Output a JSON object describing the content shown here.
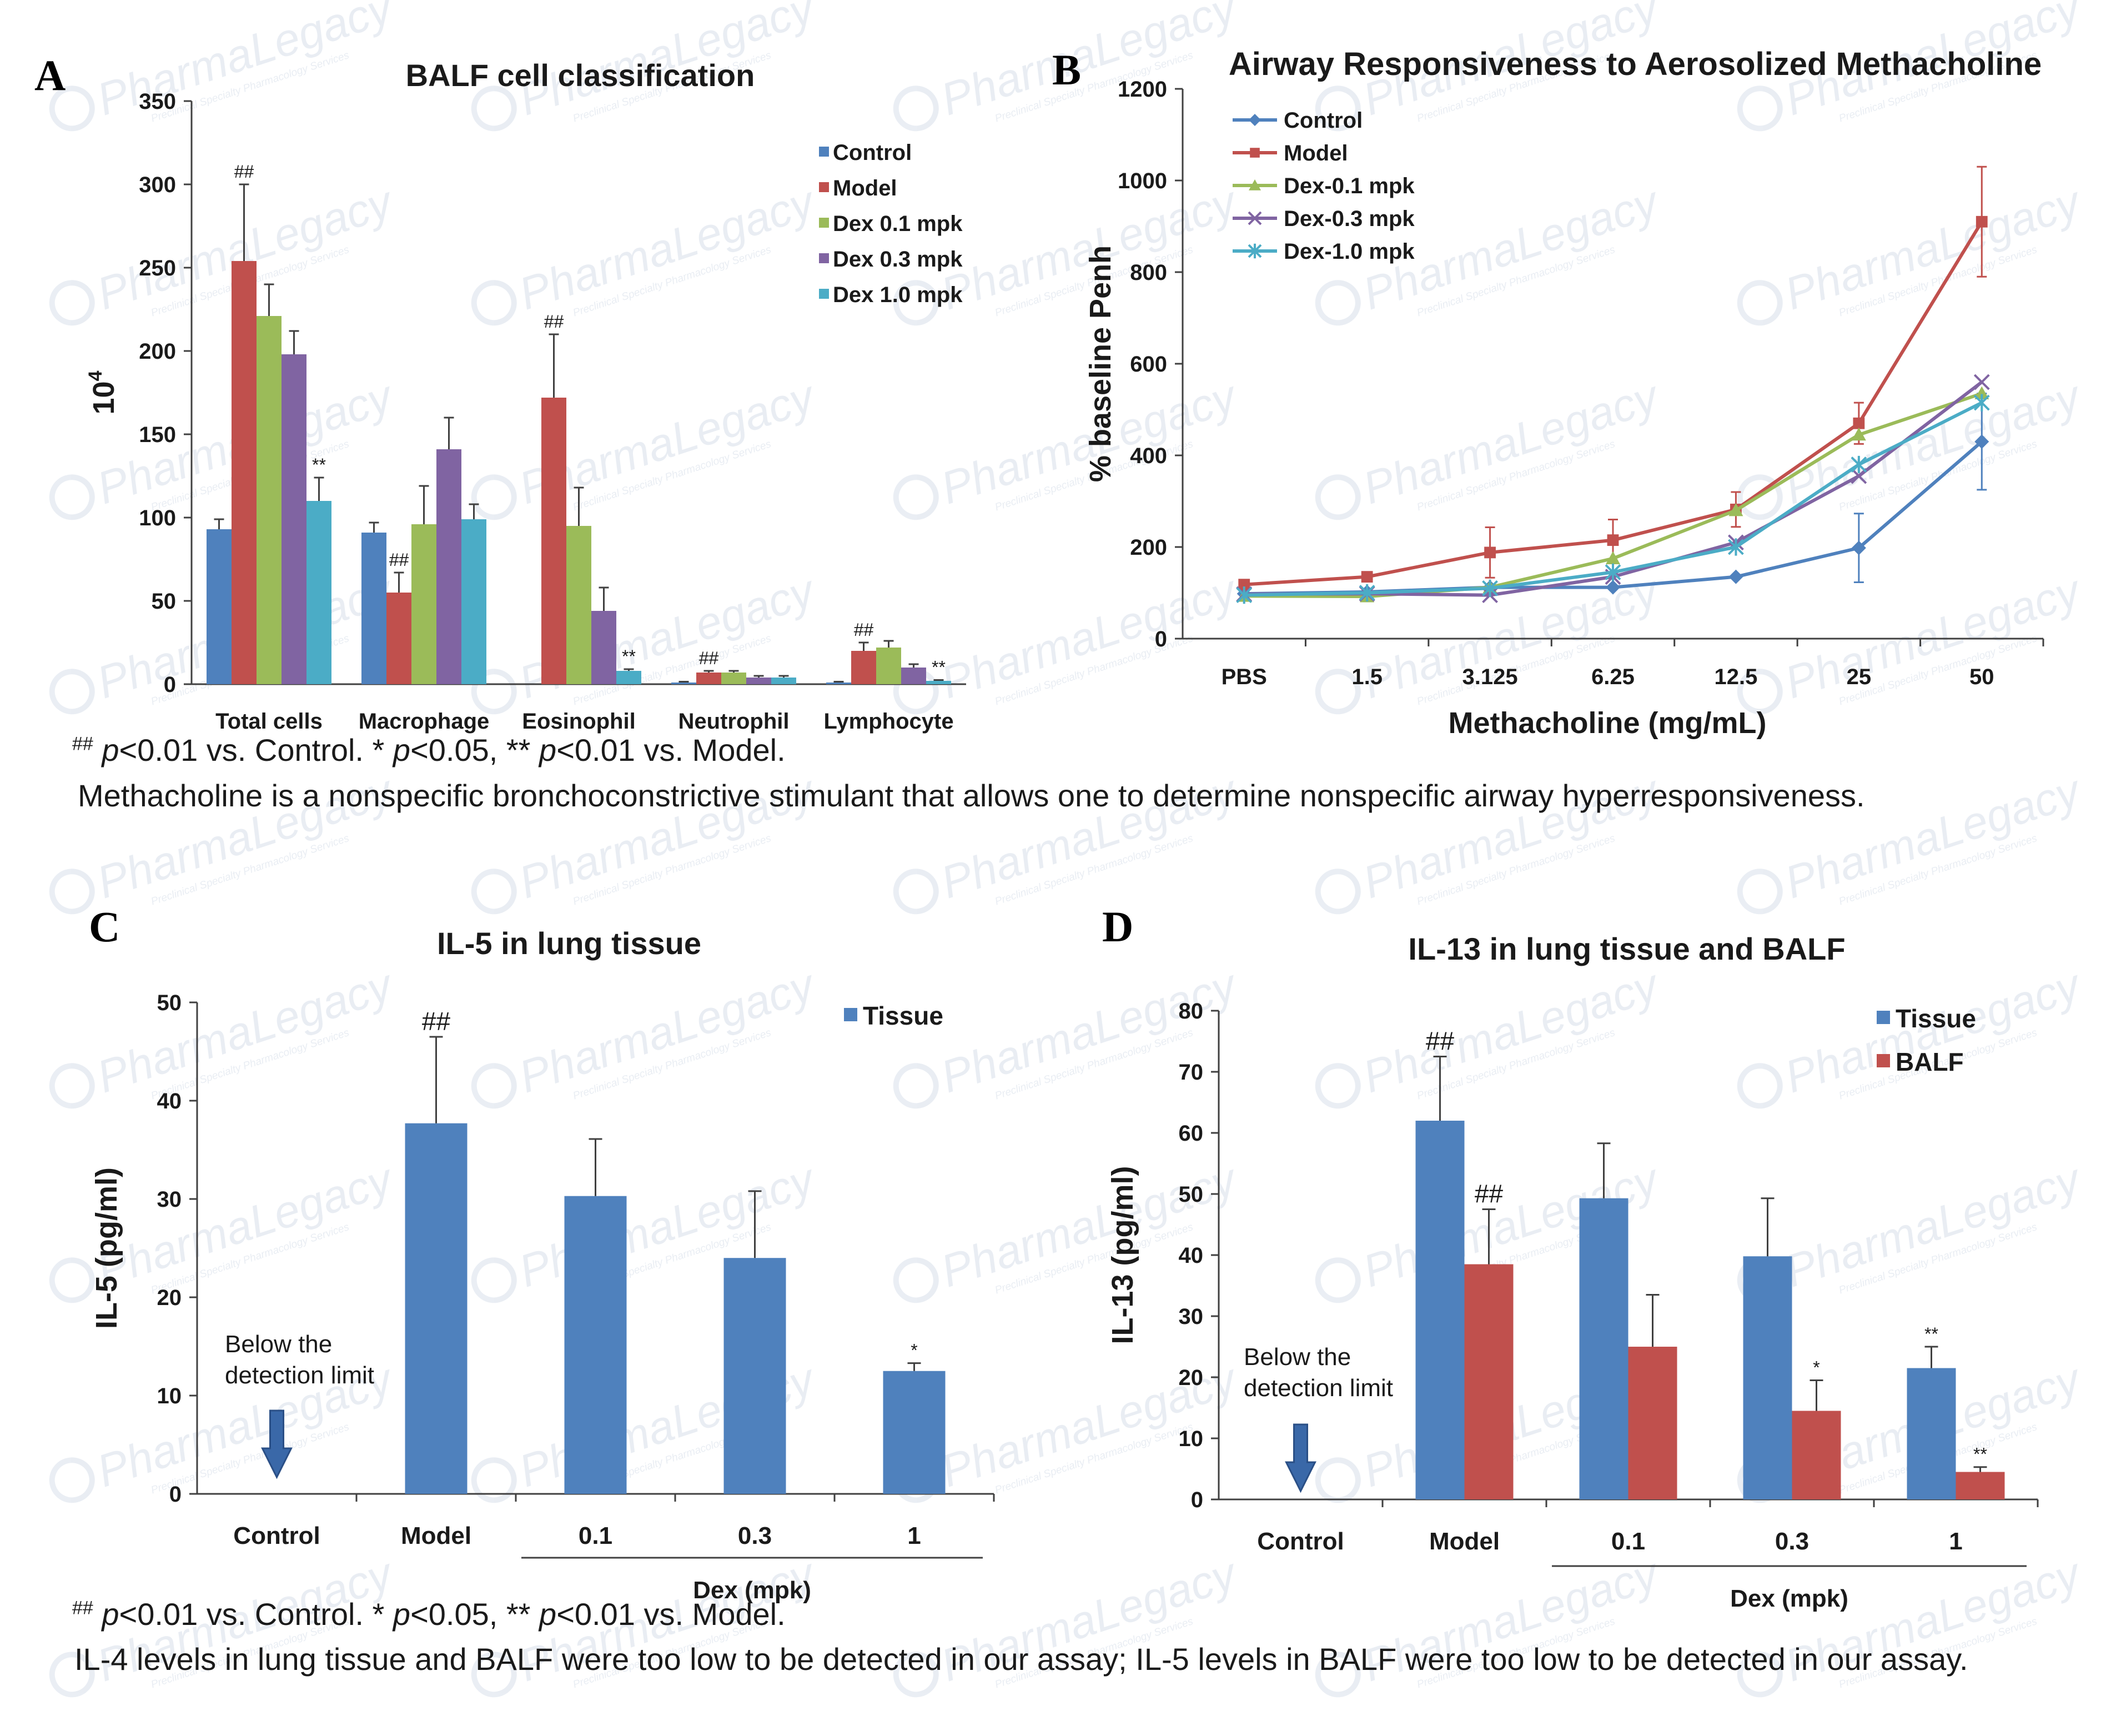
{
  "watermark": {
    "text": "PharmaLegacy",
    "tagline": "Preclinical Specialty Pharmacology Services"
  },
  "colors": {
    "blue": "#4f81bd",
    "red": "#c0504d",
    "green": "#9bbb59",
    "purple": "#8064a2",
    "cyan": "#4bacc6",
    "axis": "#404040",
    "text": "#1a1a1a"
  },
  "notes": {
    "hash": "##",
    "sig_a_1": " p",
    "sig_a_2": "<0.01 vs. Control. * ",
    "sig_a_3": "p",
    "sig_a_4": "<0.05, ** ",
    "sig_a_5": "p",
    "sig_a_6": "<0.01 vs. Model.",
    "methacholine": "Methacholine is a nonspecific bronchoconstrictive stimulant that allows one to determine nonspecific airway hyperresponsiveness.",
    "il4": "IL-4 levels in lung tissue and BALF were too low to be detected in our assay; IL-5 levels in BALF were too low to be detected in our assay."
  },
  "chart_data": [
    {
      "panel": "A",
      "type": "bar",
      "title": "BALF cell classification",
      "ylabel": "10",
      "ylabel_sup": "4",
      "ylim": [
        0,
        350
      ],
      "yticks": [
        0,
        50,
        100,
        150,
        200,
        250,
        300,
        350
      ],
      "categories": [
        "Total cells",
        "Macrophage",
        "Eosinophil",
        "Neutrophil",
        "Lymphocyte"
      ],
      "series": [
        {
          "name": "Control",
          "color": "#4f81bd",
          "values": [
            93,
            91,
            0,
            1,
            1
          ],
          "errors": [
            6,
            6,
            0,
            0.5,
            0.5
          ],
          "marks": [
            "",
            "",
            "",
            "",
            ""
          ]
        },
        {
          "name": "Model",
          "color": "#c0504d",
          "values": [
            254,
            55,
            172,
            7,
            20
          ],
          "errors": [
            46,
            12,
            38,
            1,
            5
          ],
          "marks": [
            "##",
            "##",
            "##",
            "##",
            "##"
          ]
        },
        {
          "name": "Dex 0.1 mpk",
          "color": "#9bbb59",
          "values": [
            221,
            96,
            95,
            7,
            22
          ],
          "errors": [
            19,
            23,
            23,
            1,
            4
          ],
          "marks": [
            "",
            "",
            "",
            "",
            ""
          ]
        },
        {
          "name": "Dex 0.3 mpk",
          "color": "#8064a2",
          "values": [
            198,
            141,
            44,
            4,
            10
          ],
          "errors": [
            14,
            19,
            14,
            1,
            2
          ],
          "marks": [
            "",
            "",
            "",
            "",
            ""
          ]
        },
        {
          "name": "Dex 1.0 mpk",
          "color": "#4bacc6",
          "values": [
            110,
            99,
            8,
            4,
            2
          ],
          "errors": [
            14,
            9,
            1,
            1,
            0.5
          ],
          "marks": [
            "**",
            "",
            "**",
            "",
            "**"
          ]
        }
      ],
      "legend": "right"
    },
    {
      "panel": "B",
      "type": "line",
      "title": "Airway Responsiveness to Aerosolized Methacholine",
      "xlabel": "Methacholine (mg/mL)",
      "ylabel": "% baseline Penh",
      "x": [
        "PBS",
        "1.5",
        "3.125",
        "6.25",
        "12.5",
        "25",
        "50"
      ],
      "ylim": [
        0,
        1200
      ],
      "yticks": [
        0,
        200,
        400,
        600,
        800,
        1000,
        1200
      ],
      "series": [
        {
          "name": "Control",
          "color": "#4f81bd",
          "marker": "diamond",
          "values": [
            98,
            102,
            112,
            112,
            135,
            198,
            430
          ],
          "errors": [
            0,
            0,
            0,
            0,
            0,
            75,
            105
          ]
        },
        {
          "name": "Model",
          "color": "#c0504d",
          "marker": "square",
          "values": [
            118,
            135,
            188,
            215,
            282,
            470,
            910
          ],
          "errors": [
            0,
            0,
            55,
            45,
            38,
            45,
            120
          ]
        },
        {
          "name": "Dex-0.1 mpk",
          "color": "#9bbb59",
          "marker": "triangle",
          "values": [
            93,
            92,
            112,
            175,
            280,
            445,
            535
          ],
          "errors": [
            0,
            0,
            0,
            0,
            0,
            0,
            0
          ]
        },
        {
          "name": "Dex-0.3 mpk",
          "color": "#8064a2",
          "marker": "x",
          "values": [
            97,
            98,
            95,
            135,
            210,
            355,
            560
          ],
          "errors": [
            0,
            0,
            0,
            0,
            0,
            0,
            0
          ]
        },
        {
          "name": "Dex-1.0 mpk",
          "color": "#4bacc6",
          "marker": "star",
          "values": [
            95,
            100,
            110,
            145,
            200,
            380,
            515
          ],
          "errors": [
            0,
            0,
            0,
            0,
            0,
            0,
            0
          ]
        }
      ],
      "legend": "top-left"
    },
    {
      "panel": "C",
      "type": "bar",
      "title": "IL-5 in lung tissue",
      "ylabel": "IL-5 (pg/ml)",
      "ylim": [
        0,
        50
      ],
      "yticks": [
        0,
        10,
        20,
        30,
        40,
        50
      ],
      "categories": [
        "Control",
        "Model",
        "0.1",
        "0.3",
        "1"
      ],
      "group_label": "Dex (mpk)",
      "series": [
        {
          "name": "Tissue",
          "color": "#4f81bd",
          "values": [
            null,
            37.7,
            30.3,
            24.0,
            12.5
          ],
          "errors": [
            0,
            8.8,
            5.8,
            6.8,
            0.8
          ],
          "marks": [
            "",
            "##",
            "",
            "",
            "*"
          ]
        }
      ],
      "annotation": "Below the detection limit",
      "annotation_line1": "Below the",
      "annotation_line2": "detection limit",
      "legend": "top-right"
    },
    {
      "panel": "D",
      "type": "bar",
      "title": "IL-13 in lung tissue and BALF",
      "ylabel": "IL-13  (pg/ml)",
      "ylim": [
        0,
        80
      ],
      "yticks": [
        0,
        10,
        20,
        30,
        40,
        50,
        60,
        70,
        80
      ],
      "categories": [
        "Control",
        "Model",
        "0.1",
        "0.3",
        "1"
      ],
      "group_label": "Dex (mpk)",
      "series": [
        {
          "name": "Tissue",
          "color": "#4f81bd",
          "values": [
            null,
            62,
            49.3,
            39.8,
            21.5
          ],
          "errors": [
            0,
            10.5,
            9,
            9.5,
            3.5
          ],
          "marks": [
            "",
            "##",
            "",
            "",
            "**"
          ]
        },
        {
          "name": "BALF",
          "color": "#c0504d",
          "values": [
            null,
            38.5,
            25,
            14.5,
            4.5
          ],
          "errors": [
            0,
            9,
            8.5,
            5,
            0.8
          ],
          "marks": [
            "",
            "##",
            "",
            "*",
            "**"
          ]
        }
      ],
      "annotation": "Below the detection limit",
      "annotation_line1": "Below the",
      "annotation_line2": "detection limit",
      "legend": "top-right"
    }
  ]
}
